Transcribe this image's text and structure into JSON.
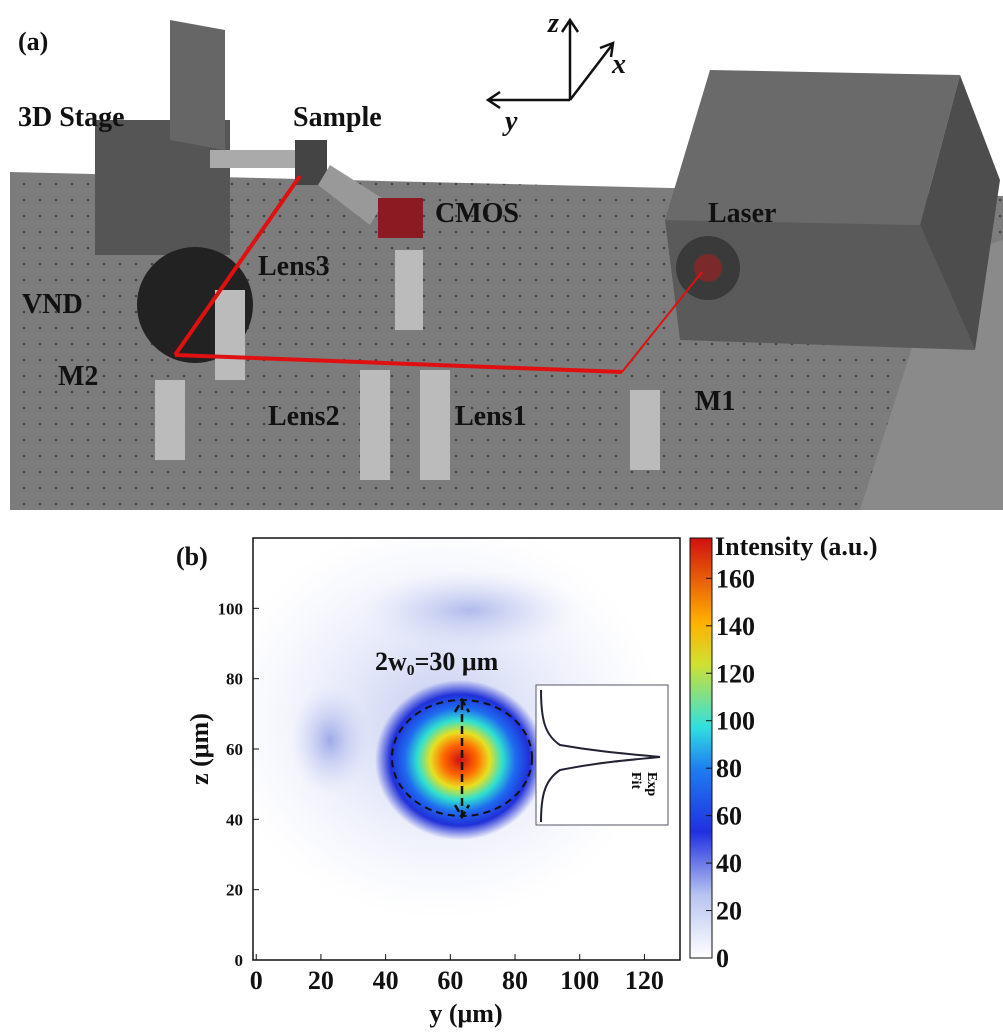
{
  "panel_a": {
    "label": "(a)",
    "components": [
      "3D Stage",
      "Sample",
      "CMOS",
      "Laser",
      "Lens3",
      "VND",
      "M2",
      "Lens2",
      "Lens1",
      "M1"
    ],
    "axes": [
      "z",
      "x",
      "y"
    ]
  },
  "panel_b": {
    "label": "(b)",
    "type": "heatmap",
    "x_label": "y (μm)",
    "y_label": "z (μm)",
    "xlim": [
      -1,
      131
    ],
    "xticks": [
      0,
      20,
      40,
      60,
      80,
      100,
      120
    ],
    "ylim": [
      0,
      120
    ],
    "yticks": [
      0,
      20,
      40,
      60,
      80,
      100
    ],
    "annotation": "2w₀=30 μm",
    "inset_legend": [
      "Exp",
      "Fit"
    ],
    "colorbar": {
      "label": "Intensity (a.u.)",
      "lim": [
        0,
        177
      ],
      "ticks": [
        0,
        20,
        40,
        60,
        80,
        100,
        120,
        140,
        160
      ]
    }
  }
}
